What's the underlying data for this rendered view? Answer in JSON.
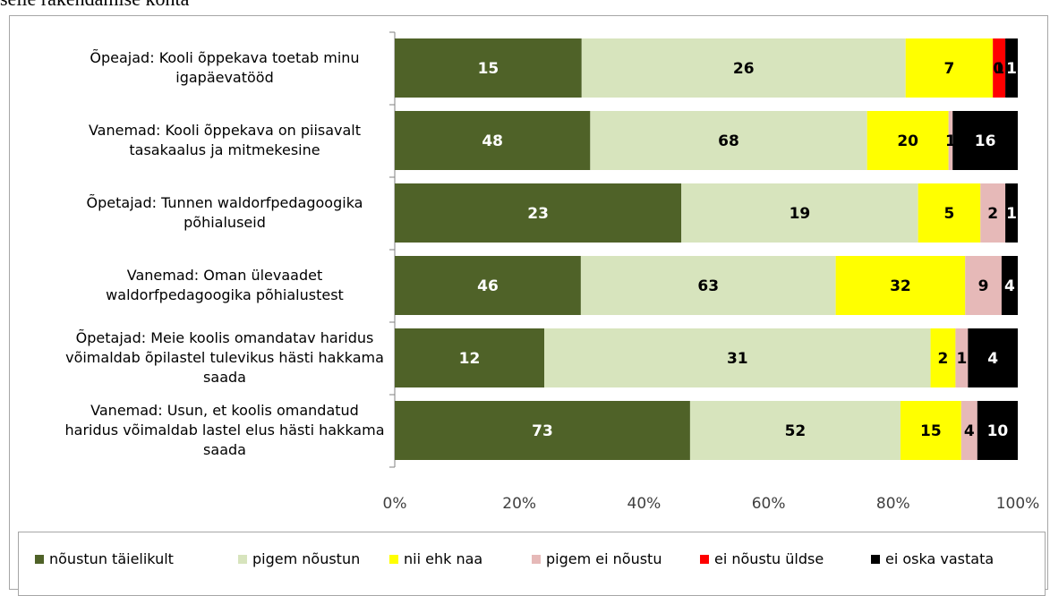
{
  "page": {
    "cut_title": "selle rakendamise kohta"
  },
  "chart_data": {
    "type": "bar",
    "orientation": "horizontal",
    "stacked": "percent",
    "categories": [
      "Õpeajad: Kooli õppekava toetab minu igapäevatööd",
      "Vanemad: Kooli õppekava on piisavalt tasakaalus ja mitmekesine",
      "Õpetajad: Tunnen waldorfpedagoogika põhialuseid",
      "Vanemad: Oman ülevaadet waldorfpedagoogika põhialustest",
      "Õpetajad: Meie koolis omandatav haridus võimaldab õpilastel tulevikus hästi hakkama saada",
      "Vanemad: Usun, et koolis omandatud haridus võimaldab lastel elus hästi hakkama saada"
    ],
    "series": [
      {
        "name": "nõustun täielikult",
        "color": "#4f6228",
        "label_color": "#ffffff",
        "values": [
          15,
          48,
          23,
          46,
          12,
          73
        ]
      },
      {
        "name": "pigem nõustun",
        "color": "#d7e4bd",
        "label_color": "#000000",
        "values": [
          26,
          68,
          19,
          63,
          31,
          52
        ]
      },
      {
        "name": "nii ehk naa",
        "color": "#ffff00",
        "label_color": "#000000",
        "values": [
          7,
          20,
          5,
          32,
          2,
          15
        ]
      },
      {
        "name": "pigem ei nõustu",
        "color": "#e6b9b8",
        "label_color": "#000000",
        "values": [
          0,
          1,
          2,
          9,
          1,
          4
        ]
      },
      {
        "name": "ei nõustu üldse",
        "color": "#ff0000",
        "label_color": "#000000",
        "values": [
          1,
          0,
          0,
          0,
          0,
          0
        ]
      },
      {
        "name": "ei oska vastata",
        "color": "#000000",
        "label_color": "#ffffff",
        "values": [
          1,
          16,
          1,
          4,
          4,
          10
        ]
      }
    ],
    "x_ticks": [
      "0%",
      "20%",
      "40%",
      "60%",
      "80%",
      "100%"
    ],
    "xlim": [
      0,
      100
    ],
    "legend_position": "bottom",
    "grid": false
  }
}
